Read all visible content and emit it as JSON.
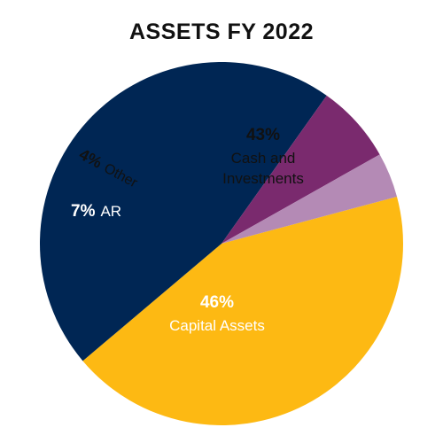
{
  "chart_data": {
    "type": "pie",
    "title": "ASSETS FY 2022",
    "slices": [
      {
        "key": "cash",
        "label_lines": [
          "Cash and",
          "Investments"
        ],
        "pct_text": "43%",
        "value": 43,
        "color": "#FDB913"
      },
      {
        "key": "capital",
        "label_lines": [
          "Capital Assets"
        ],
        "pct_text": "46%",
        "value": 46,
        "color": "#002654"
      },
      {
        "key": "ar",
        "label_lines": [
          "AR"
        ],
        "pct_text": "7%",
        "value": 7,
        "color": "#7A2A6E"
      },
      {
        "key": "other",
        "label_lines": [
          "Other"
        ],
        "pct_text": "4%",
        "value": 4,
        "color": "#B48AB5"
      }
    ]
  }
}
